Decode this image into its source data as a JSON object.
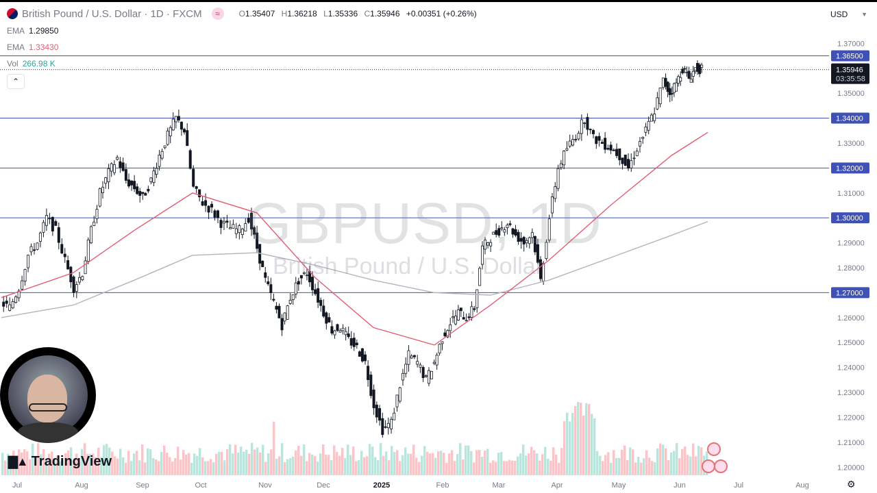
{
  "header": {
    "title": "British Pound / U.S. Dollar · 1D · FXCM",
    "open_label": "O",
    "open": "1.35407",
    "high_label": "H",
    "high": "1.36218",
    "low_label": "L",
    "low": "1.35336",
    "close_label": "C",
    "close": "1.35946",
    "change": "+0.00351 (+0.26%)"
  },
  "legend": {
    "ema1_label": "EMA",
    "ema1_value": "1.29850",
    "ema2_label": "EMA",
    "ema2_value": "1.33430",
    "vol_label": "Vol",
    "vol_value": "266.98 K"
  },
  "currency": "USD",
  "watermark": {
    "symbol": "GBPUSD, 1D",
    "name": "British Pound / U.S. Dollar"
  },
  "brand": "TradingView",
  "colors": {
    "up": "#26a69a",
    "down": "#ef5350",
    "candle": "#131722",
    "ema_fast": "#e35d72",
    "ema_slow": "#b2b5be",
    "hline": "#3f51b5",
    "vol_up": "#a6dbd1",
    "vol_down": "#f5b3b5"
  },
  "chart_data": {
    "type": "line",
    "title": "",
    "y_ticks": [
      "1.37000",
      "1.36000",
      "1.35000",
      "1.34000",
      "1.33000",
      "1.32000",
      "1.31000",
      "1.30000",
      "1.29000",
      "1.28000",
      "1.27000",
      "1.26000",
      "1.25000",
      "1.24000",
      "1.23000",
      "1.22000",
      "1.21000",
      "1.20000"
    ],
    "ylim": [
      1.1965,
      1.3775
    ],
    "x_ticks": [
      "Jul",
      "Aug",
      "Sep",
      "Oct",
      "Nov",
      "Dec",
      "2025",
      "Feb",
      "Mar",
      "Apr",
      "May",
      "Jun",
      "Jul",
      "Aug"
    ],
    "horizontal_levels": [
      "1.36500",
      "1.34000",
      "1.32000",
      "1.30000",
      "1.27000"
    ],
    "last_price": "1.35946",
    "countdown": "03:35:58",
    "price_path": [
      [
        "Jul",
        1.266
      ],
      [
        "Jul",
        1.264
      ],
      [
        "Jul",
        1.272
      ],
      [
        "Jul",
        1.285
      ],
      [
        "Jul",
        1.29
      ],
      [
        "Jul",
        1.3
      ],
      [
        "Jul",
        1.295
      ],
      [
        "Aug",
        1.283
      ],
      [
        "Aug",
        1.272
      ],
      [
        "Aug",
        1.278
      ],
      [
        "Aug",
        1.295
      ],
      [
        "Aug",
        1.31
      ],
      [
        "Aug",
        1.318
      ],
      [
        "Aug",
        1.324
      ],
      [
        "Sep",
        1.315
      ],
      [
        "Sep",
        1.312
      ],
      [
        "Sep",
        1.308
      ],
      [
        "Sep",
        1.315
      ],
      [
        "Sep",
        1.325
      ],
      [
        "Sep",
        1.333
      ],
      [
        "Sep",
        1.34
      ],
      [
        "Oct",
        1.335
      ],
      [
        "Oct",
        1.312
      ],
      [
        "Oct",
        1.306
      ],
      [
        "Oct",
        1.303
      ],
      [
        "Oct",
        1.298
      ],
      [
        "Oct",
        1.296
      ],
      [
        "Oct",
        1.295
      ],
      [
        "Nov",
        1.3
      ],
      [
        "Nov",
        1.288
      ],
      [
        "Nov",
        1.275
      ],
      [
        "Nov",
        1.266
      ],
      [
        "Nov",
        1.257
      ],
      [
        "Nov",
        1.268
      ],
      [
        "Nov",
        1.275
      ],
      [
        "Dec",
        1.278
      ],
      [
        "Dec",
        1.27
      ],
      [
        "Dec",
        1.262
      ],
      [
        "Dec",
        1.255
      ],
      [
        "Dec",
        1.256
      ],
      [
        "Dec",
        1.251
      ],
      [
        "Dec",
        1.248
      ],
      [
        "2025",
        1.242
      ],
      [
        "2025",
        1.225
      ],
      [
        "2025",
        1.215
      ],
      [
        "2025",
        1.218
      ],
      [
        "2025",
        1.233
      ],
      [
        "2025",
        1.245
      ],
      [
        "2025",
        1.242
      ],
      [
        "Feb",
        1.235
      ],
      [
        "Feb",
        1.242
      ],
      [
        "Feb",
        1.252
      ],
      [
        "Feb",
        1.258
      ],
      [
        "Feb",
        1.262
      ],
      [
        "Feb",
        1.26
      ],
      [
        "Feb",
        1.264
      ],
      [
        "Mar",
        1.288
      ],
      [
        "Mar",
        1.292
      ],
      [
        "Mar",
        1.295
      ],
      [
        "Mar",
        1.298
      ],
      [
        "Mar",
        1.293
      ],
      [
        "Mar",
        1.29
      ],
      [
        "Mar",
        1.294
      ],
      [
        "Apr",
        1.275
      ],
      [
        "Apr",
        1.3
      ],
      [
        "Apr",
        1.32
      ],
      [
        "Apr",
        1.328
      ],
      [
        "Apr",
        1.333
      ],
      [
        "Apr",
        1.34
      ],
      [
        "Apr",
        1.332
      ],
      [
        "May",
        1.33
      ],
      [
        "May",
        1.328
      ],
      [
        "May",
        1.325
      ],
      [
        "May",
        1.32
      ],
      [
        "May",
        1.328
      ],
      [
        "May",
        1.335
      ],
      [
        "May",
        1.343
      ],
      [
        "Jun",
        1.355
      ],
      [
        "Jun",
        1.35
      ],
      [
        "Jun",
        1.354
      ],
      [
        "Jun",
        1.36
      ],
      [
        "Jun",
        1.356
      ],
      [
        "Jun",
        1.36
      ],
      [
        "Jun",
        1.3595
      ]
    ],
    "ema_fast": [
      [
        "Jul",
        1.268
      ],
      [
        "Aug",
        1.278
      ],
      [
        "Sep",
        1.295
      ],
      [
        "Oct",
        1.31
      ],
      [
        "Nov",
        1.302
      ],
      [
        "Dec",
        1.276
      ],
      [
        "2025",
        1.256
      ],
      [
        "Feb",
        1.249
      ],
      [
        "Mar",
        1.265
      ],
      [
        "Apr",
        1.283
      ],
      [
        "May",
        1.305
      ],
      [
        "Jun",
        1.325
      ],
      [
        "Jun",
        1.3343
      ]
    ],
    "ema_slow": [
      [
        "Jul",
        1.26
      ],
      [
        "Aug",
        1.265
      ],
      [
        "Sep",
        1.275
      ],
      [
        "Oct",
        1.285
      ],
      [
        "Nov",
        1.286
      ],
      [
        "Dec",
        1.281
      ],
      [
        "2025",
        1.275
      ],
      [
        "Feb",
        1.27
      ],
      [
        "Mar",
        1.269
      ],
      [
        "Apr",
        1.275
      ],
      [
        "May",
        1.284
      ],
      [
        "Jun",
        1.293
      ],
      [
        "Jun",
        1.2985
      ]
    ]
  }
}
